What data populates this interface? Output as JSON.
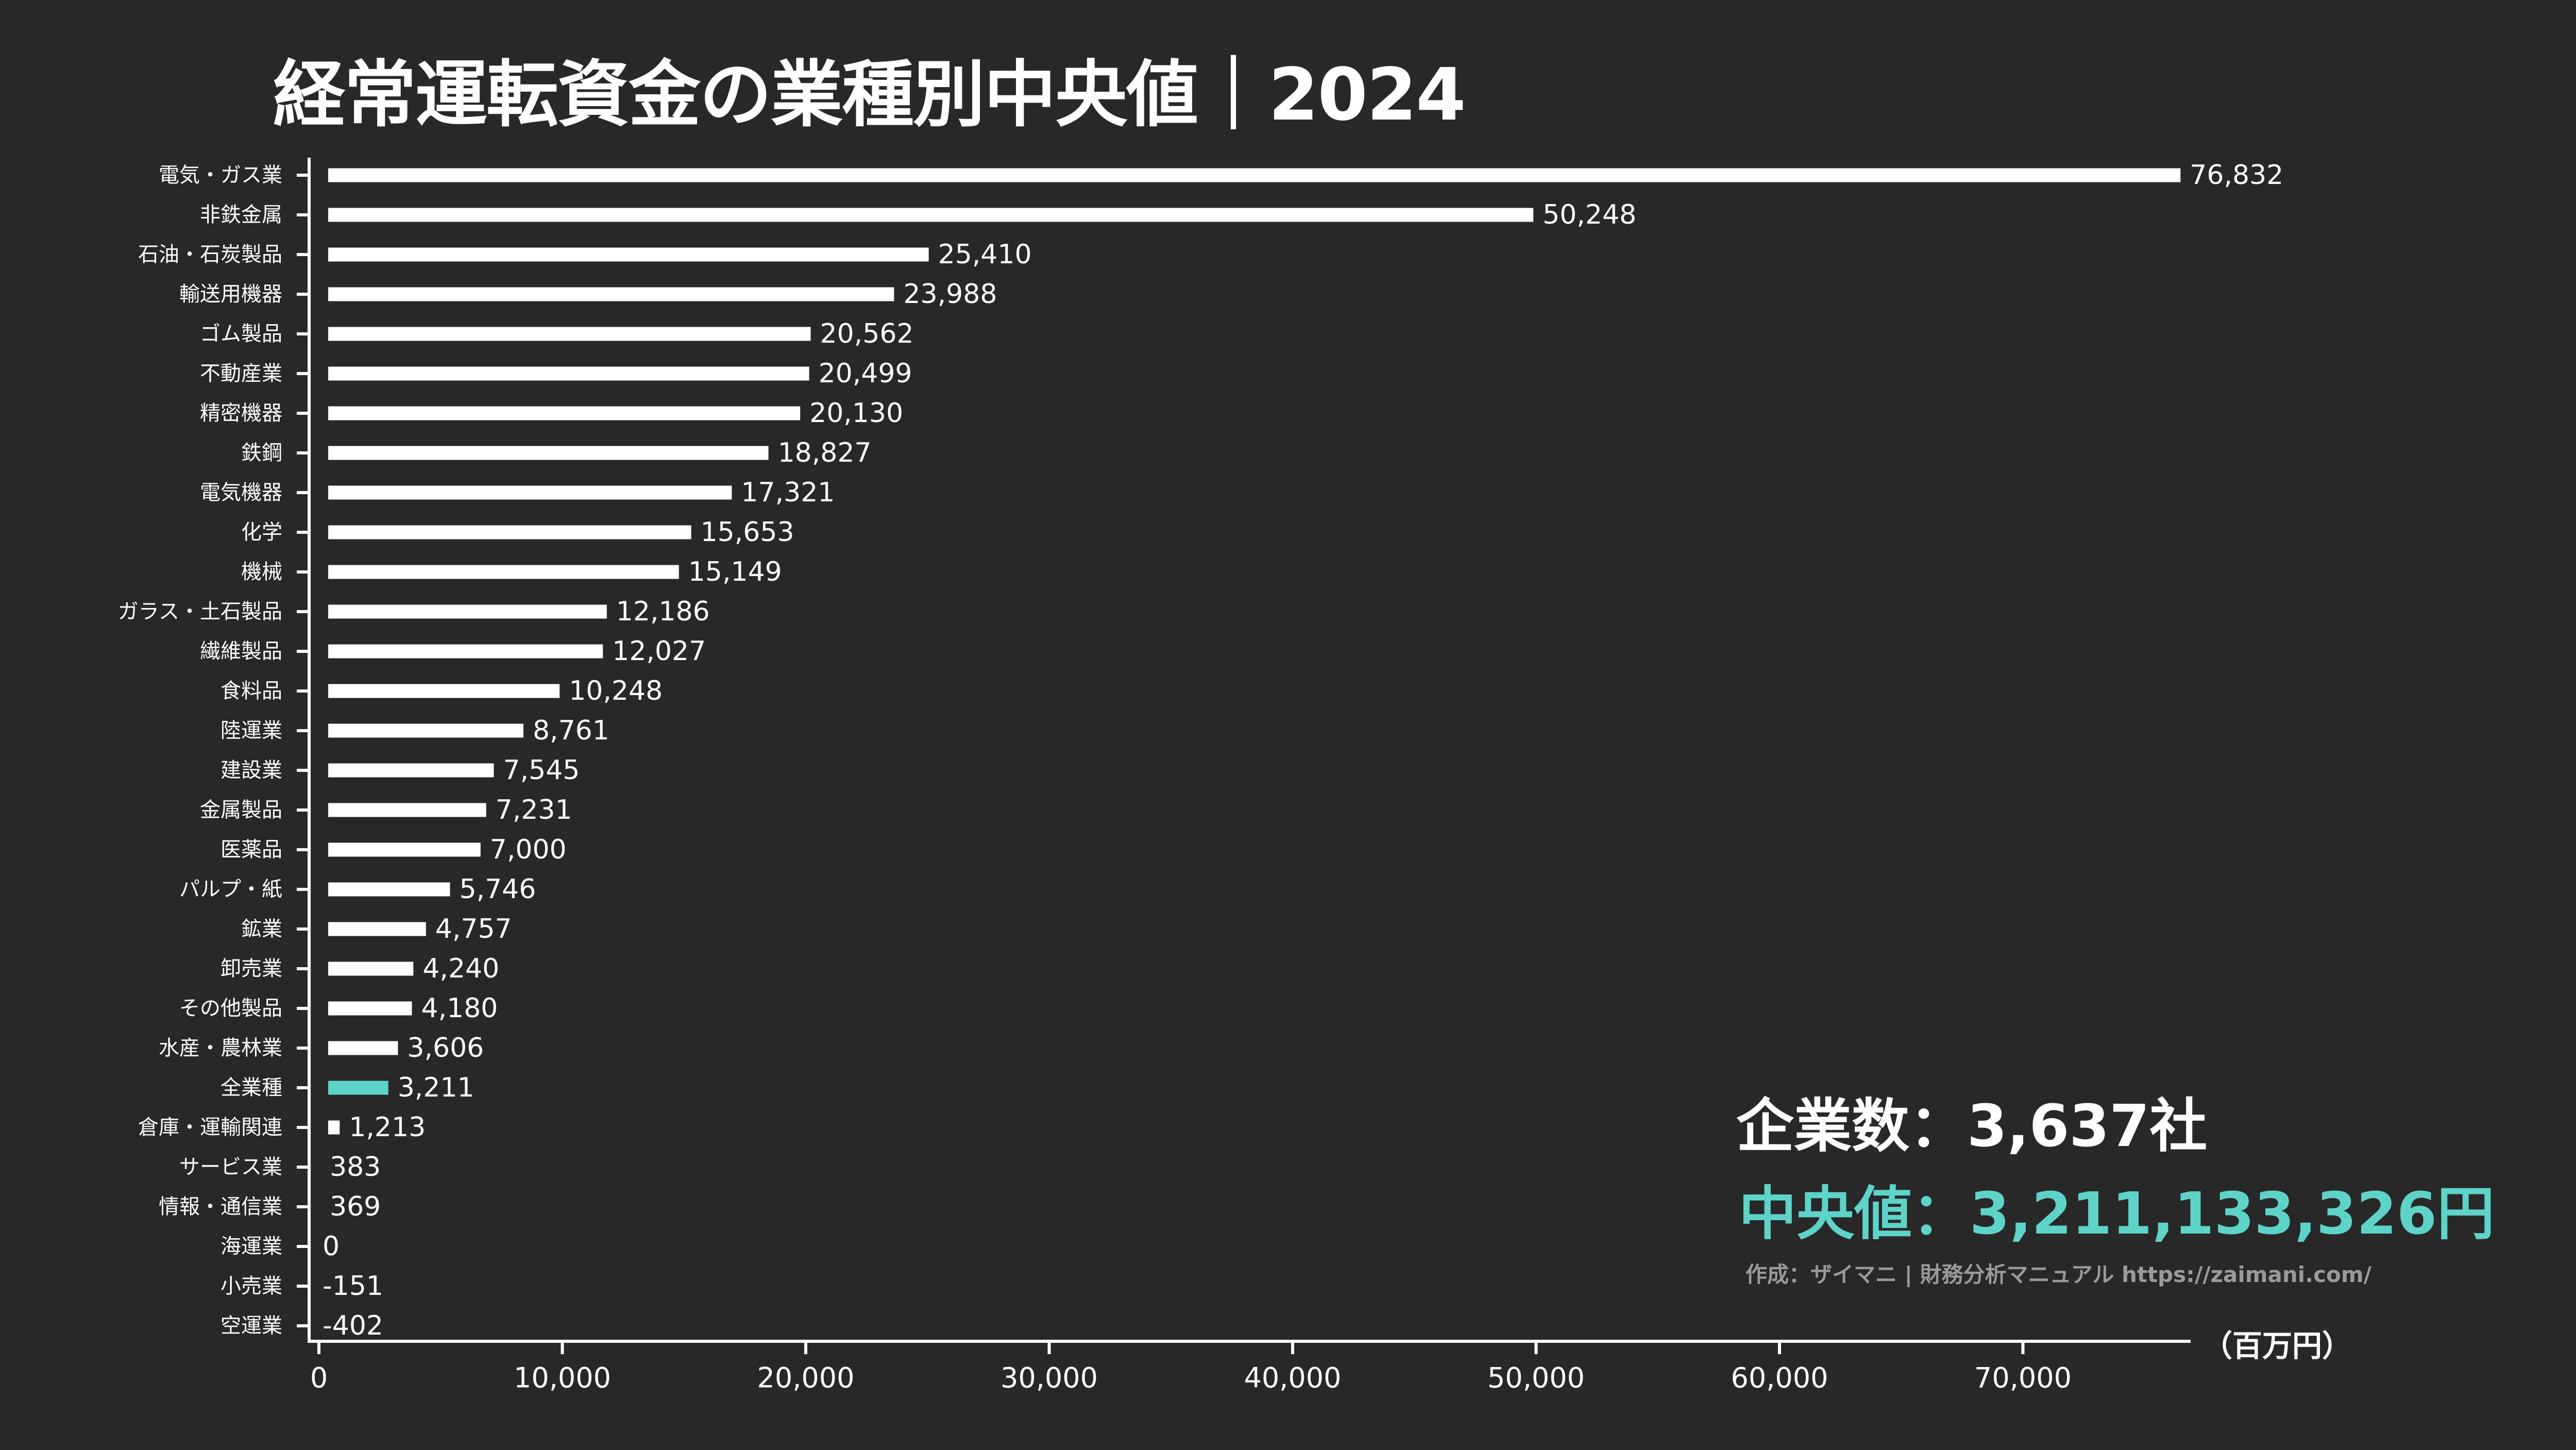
{
  "title": "経常運転資金の業種別中央値｜2024",
  "colors": {
    "background": "#282828",
    "bar": "#ffffff",
    "highlight": "#5ed3c8",
    "credit": "#9a9a9a"
  },
  "summary": {
    "companies": "企業数：3,637社",
    "median": "中央値：3,211,133,326円",
    "credit": "作成：ザイマニ | 財務分析マニュアル https://zaimani.com/"
  },
  "chart_data": {
    "type": "bar",
    "orientation": "horizontal",
    "title": "経常運転資金の業種別中央値｜2024",
    "xlabel": "（百万円）",
    "ylabel": "",
    "xlim": [
      0,
      76832
    ],
    "grid": false,
    "highlight_category": "全業種",
    "categories": [
      "電気・ガス業",
      "非鉄金属",
      "石油・石炭製品",
      "輸送用機器",
      "ゴム製品",
      "不動産業",
      "精密機器",
      "鉄鋼",
      "電気機器",
      "化学",
      "機械",
      "ガラス・土石製品",
      "繊維製品",
      "食料品",
      "陸運業",
      "建設業",
      "金属製品",
      "医薬品",
      "パルプ・紙",
      "鉱業",
      "卸売業",
      "その他製品",
      "水産・農林業",
      "全業種",
      "倉庫・運輸関連",
      "サービス業",
      "情報・通信業",
      "海運業",
      "小売業",
      "空運業"
    ],
    "values": [
      76832,
      50248,
      25410,
      23988,
      20562,
      20499,
      20130,
      18827,
      17321,
      15653,
      15149,
      12186,
      12027,
      10248,
      8761,
      7545,
      7231,
      7000,
      5746,
      4757,
      4240,
      4180,
      3606,
      3211,
      1213,
      383,
      369,
      0,
      -151,
      -402
    ],
    "value_labels": [
      "76,832",
      "50,248",
      "25,410",
      "23,988",
      "20,562",
      "20,499",
      "20,130",
      "18,827",
      "17,321",
      "15,653",
      "15,149",
      "12,186",
      "12,027",
      "10,248",
      "8,761",
      "7,545",
      "7,231",
      "7,000",
      "5,746",
      "4,757",
      "4,240",
      "4,180",
      "3,606",
      "3,211",
      "1,213",
      "383",
      "369",
      "0",
      "-151",
      "-402"
    ],
    "x_ticks": [
      0,
      10000,
      20000,
      30000,
      40000,
      50000,
      60000,
      70000
    ],
    "x_tick_labels": [
      "0",
      "10,000",
      "20,000",
      "30,000",
      "40,000",
      "50,000",
      "60,000",
      "70,000"
    ]
  }
}
